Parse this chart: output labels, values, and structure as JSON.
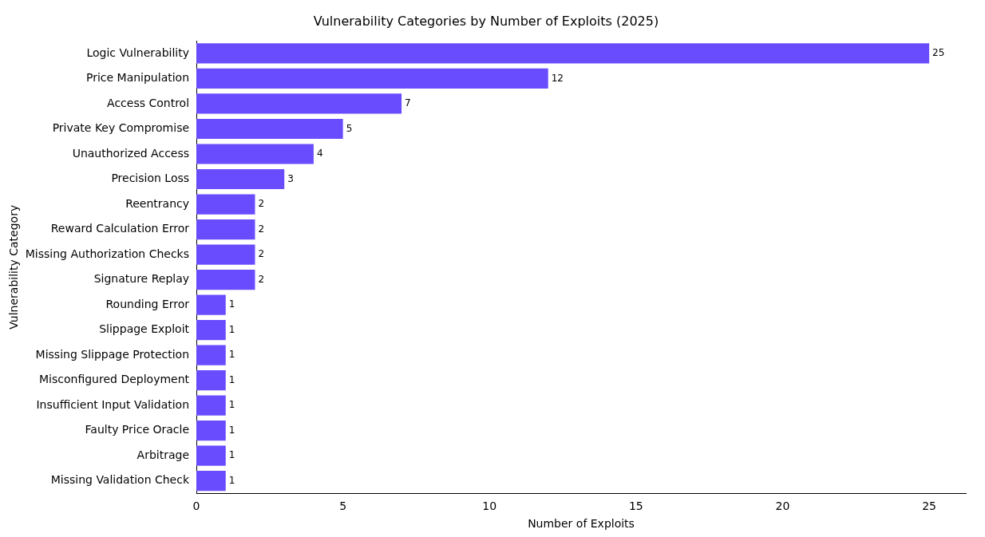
{
  "chart_data": {
    "type": "bar",
    "orientation": "horizontal",
    "title": "Vulnerability Categories by Number of Exploits (2025)",
    "xlabel": "Number of Exploits",
    "ylabel": "Vulnerability Category",
    "categories": [
      "Logic Vulnerability",
      "Price Manipulation",
      "Access Control",
      "Private Key Compromise",
      "Unauthorized Access",
      "Precision Loss",
      "Reentrancy",
      "Reward Calculation Error",
      "Missing Authorization Checks",
      "Signature Replay",
      "Rounding Error",
      "Slippage Exploit",
      "Missing Slippage Protection",
      "Misconfigured Deployment",
      "Insufficient Input Validation",
      "Faulty Price Oracle",
      "Arbitrage",
      "Missing Validation Check"
    ],
    "values": [
      25,
      12,
      7,
      5,
      4,
      3,
      2,
      2,
      2,
      2,
      1,
      1,
      1,
      1,
      1,
      1,
      1,
      1
    ],
    "color": "#6a4cff",
    "xlim": [
      0,
      26.25
    ],
    "xticks": [
      0,
      5,
      10,
      15,
      20,
      25
    ],
    "grid": false,
    "legend": false,
    "data_labels": true
  }
}
